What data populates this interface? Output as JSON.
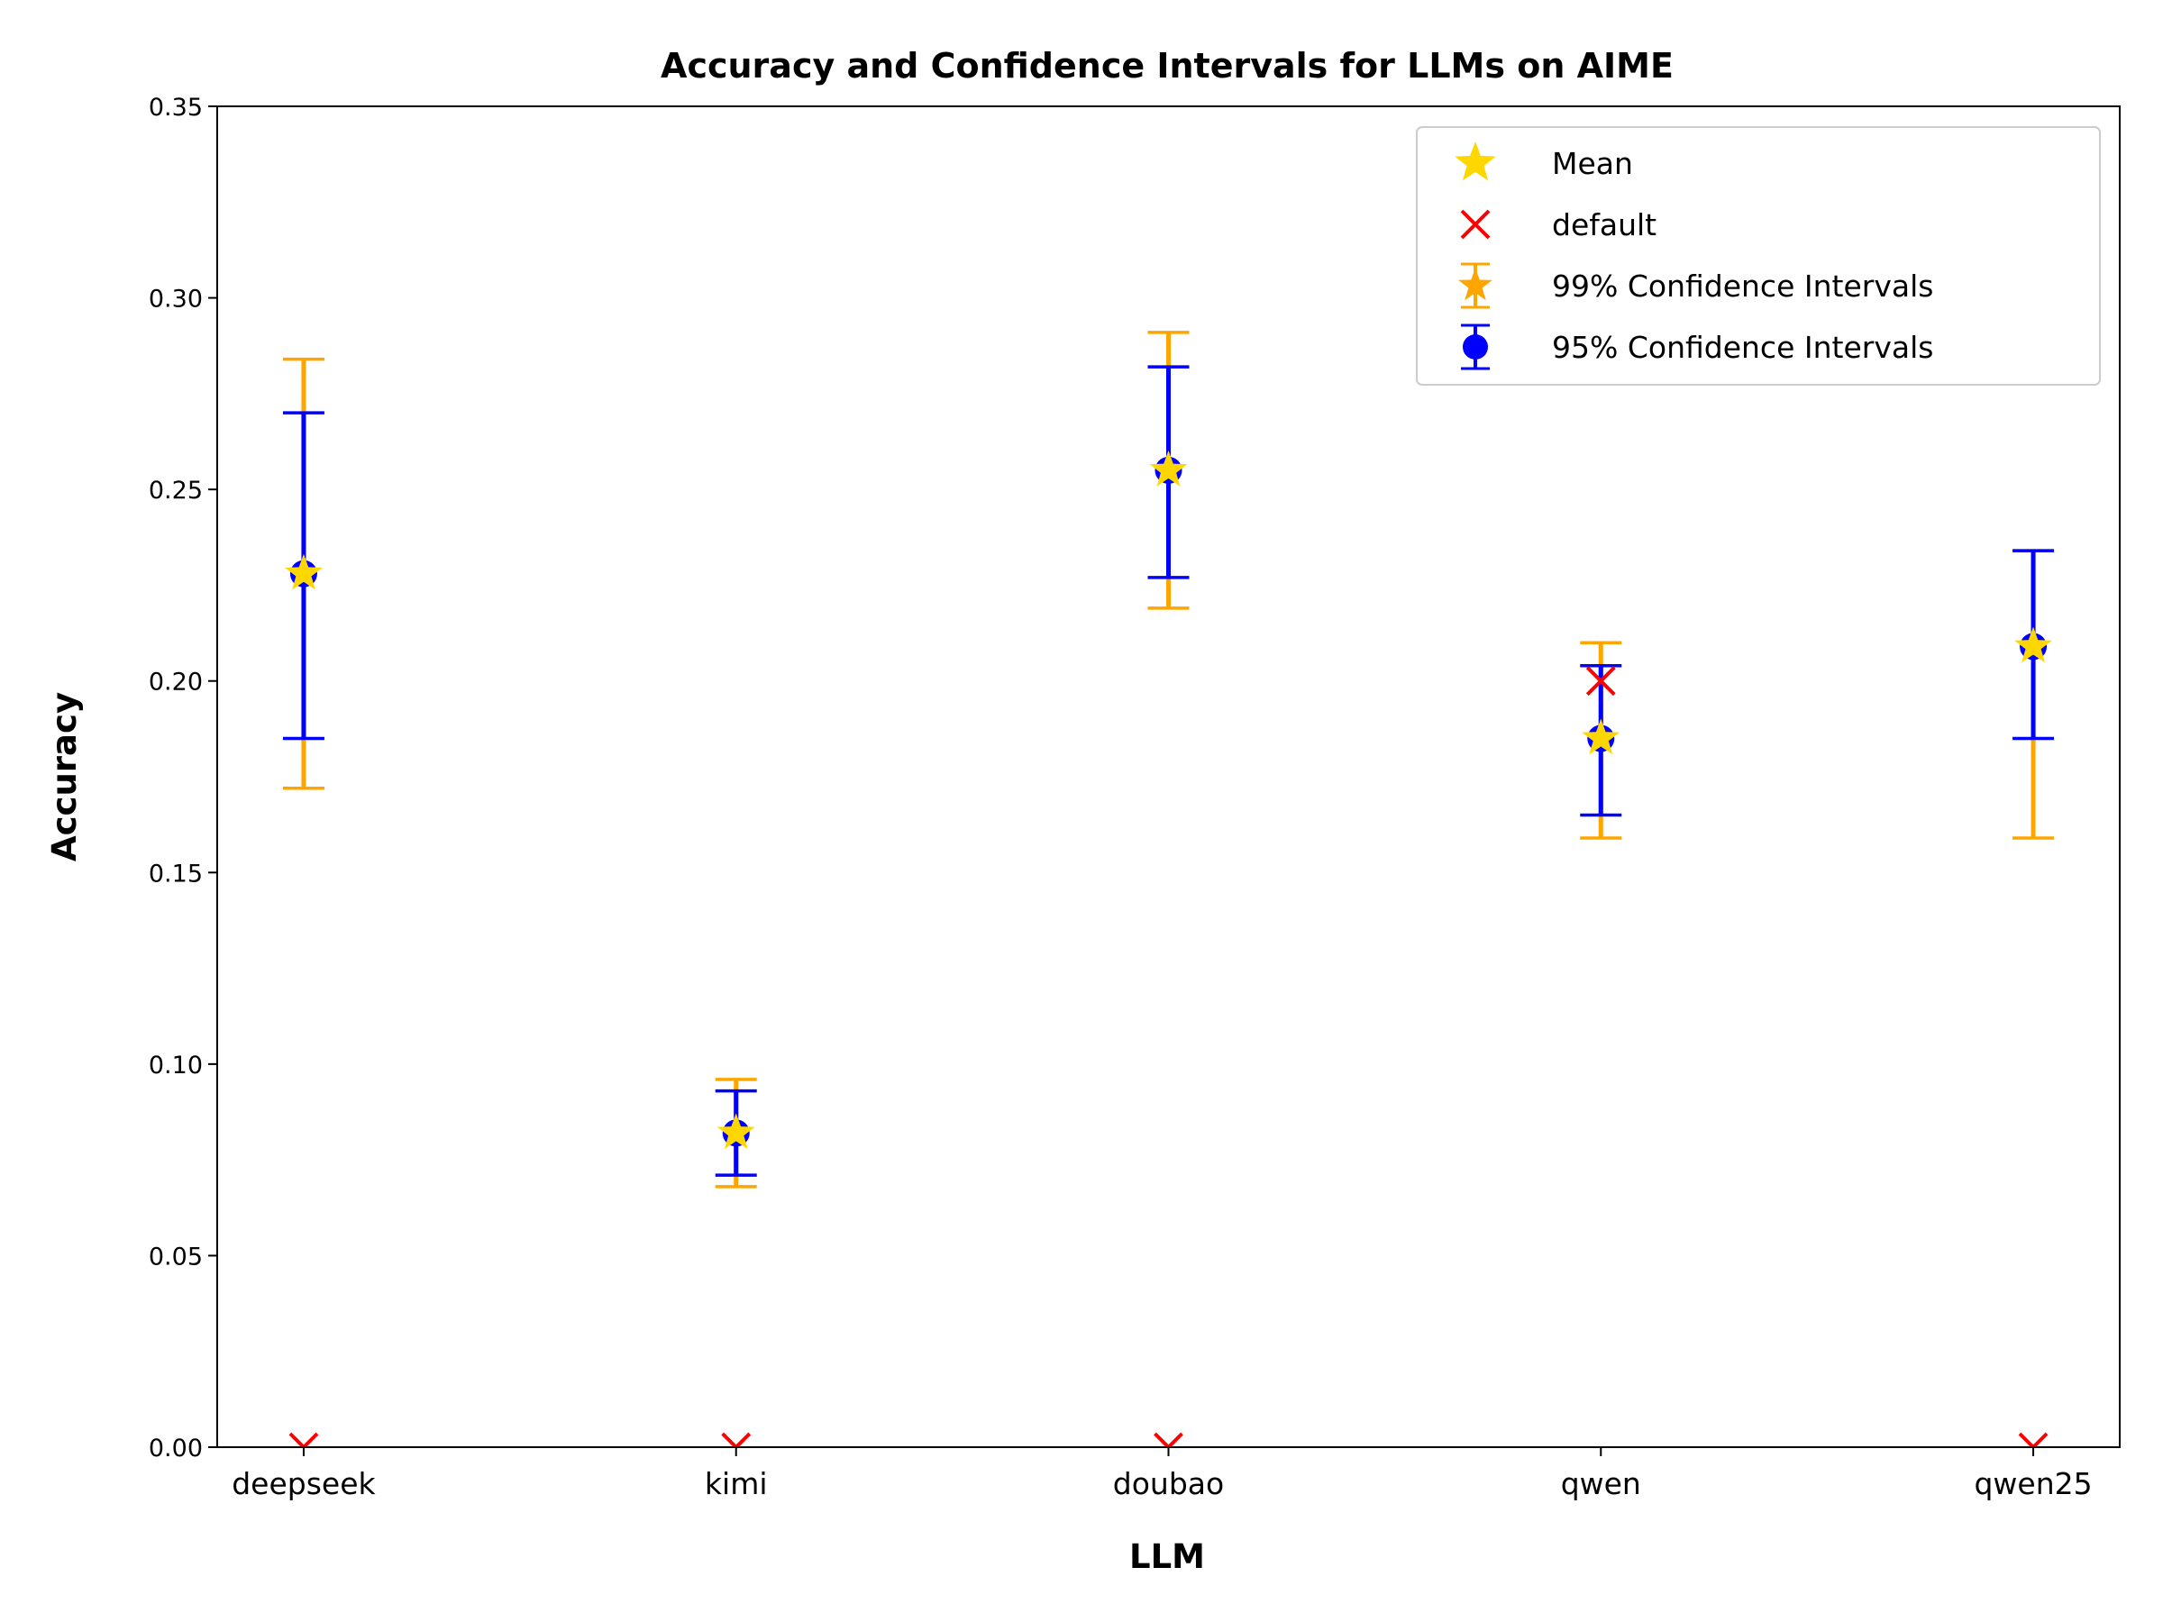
{
  "chart_data": {
    "type": "errorbar",
    "title": "Accuracy and Confidence Intervals for LLMs on AIME",
    "xlabel": "LLM",
    "ylabel": "Accuracy",
    "ylim": [
      0,
      0.35
    ],
    "yticks": [
      "0.00",
      "0.05",
      "0.10",
      "0.15",
      "0.20",
      "0.25",
      "0.30",
      "0.35"
    ],
    "categories": [
      "deepseek",
      "kimi",
      "doubao",
      "qwen",
      "qwen25"
    ],
    "grid": false,
    "legend_position": "top-right",
    "series": [
      {
        "name": "Mean",
        "marker": "star",
        "color": "#FFD700",
        "values": [
          0.228,
          0.082,
          0.255,
          0.185,
          0.209
        ]
      },
      {
        "name": "default",
        "marker": "x",
        "color": "#FF0000",
        "values": [
          0.0,
          0.0,
          0.0,
          0.2,
          0.0
        ]
      },
      {
        "name": "99% Confidence Intervals",
        "marker": "star",
        "color": "#FFA500",
        "lower": [
          0.172,
          0.068,
          0.219,
          0.159,
          0.159
        ],
        "upper": [
          0.284,
          0.096,
          0.291,
          0.21,
          0.234
        ]
      },
      {
        "name": "95% Confidence Intervals",
        "marker": "circle",
        "color": "#0000FF",
        "lower": [
          0.185,
          0.071,
          0.227,
          0.165,
          0.185
        ],
        "upper": [
          0.27,
          0.093,
          0.282,
          0.204,
          0.234
        ]
      }
    ]
  }
}
